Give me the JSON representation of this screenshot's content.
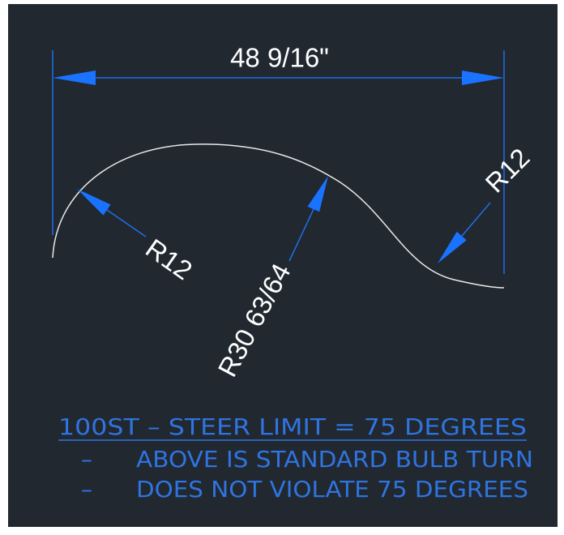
{
  "dimension": "48 9/16\"",
  "radii": {
    "left": "R12",
    "middle": "R30 63/64",
    "right": "R12"
  },
  "notes": {
    "title": "100ST – STEER LIMIT = 75 DEGREES",
    "lines": [
      {
        "dash": "–",
        "text": "ABOVE IS STANDARD BULB TURN"
      },
      {
        "dash": "–",
        "text": "DOES NOT VIOLATE 75 DEGREES"
      }
    ]
  }
}
